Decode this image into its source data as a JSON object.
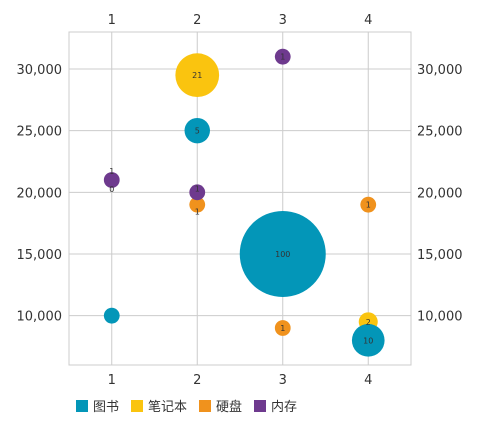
{
  "chart_data": {
    "type": "bubble",
    "x_ticks": [
      "1",
      "2",
      "3",
      "4"
    ],
    "y_ticks": [
      "10,000",
      "15,000",
      "20,000",
      "25,000",
      "30,000"
    ],
    "xlim": [
      0.5,
      4.5
    ],
    "ylim": [
      6000,
      33000
    ],
    "grid": true,
    "legend_position": "bottom-left",
    "series": [
      {
        "name": "图书",
        "color": "#0396b8",
        "points": [
          {
            "x": 1,
            "y": 10000,
            "size": 1,
            "label": ""
          },
          {
            "x": 2,
            "y": 25000,
            "size": 5,
            "label": "5"
          },
          {
            "x": 3,
            "y": 15000,
            "size": 100,
            "label": "100"
          },
          {
            "x": 4,
            "y": 8000,
            "size": 10,
            "label": "10"
          }
        ]
      },
      {
        "name": "笔记本",
        "color": "#fac40f",
        "points": [
          {
            "x": 2,
            "y": 29500,
            "size": 21,
            "label": "21"
          },
          {
            "x": 4,
            "y": 9500,
            "size": 2,
            "label": "2"
          }
        ]
      },
      {
        "name": "硬盘",
        "color": "#f0921d",
        "points": [
          {
            "x": 2,
            "y": 19000,
            "size": 1,
            "label": "1"
          },
          {
            "x": 3,
            "y": 9000,
            "size": 1,
            "label": "1"
          },
          {
            "x": 4,
            "y": 19000,
            "size": 1,
            "label": "1"
          }
        ]
      },
      {
        "name": "内存",
        "color": "#6e3a8e",
        "points": [
          {
            "x": 1,
            "y": 21000,
            "size": 1,
            "label": "1"
          },
          {
            "x": 1,
            "y": 21000,
            "size": 0,
            "label": "0"
          },
          {
            "x": 2,
            "y": 20000,
            "size": 1,
            "label": "1"
          },
          {
            "x": 3,
            "y": 31000,
            "size": 1,
            "label": "1"
          }
        ]
      }
    ]
  }
}
